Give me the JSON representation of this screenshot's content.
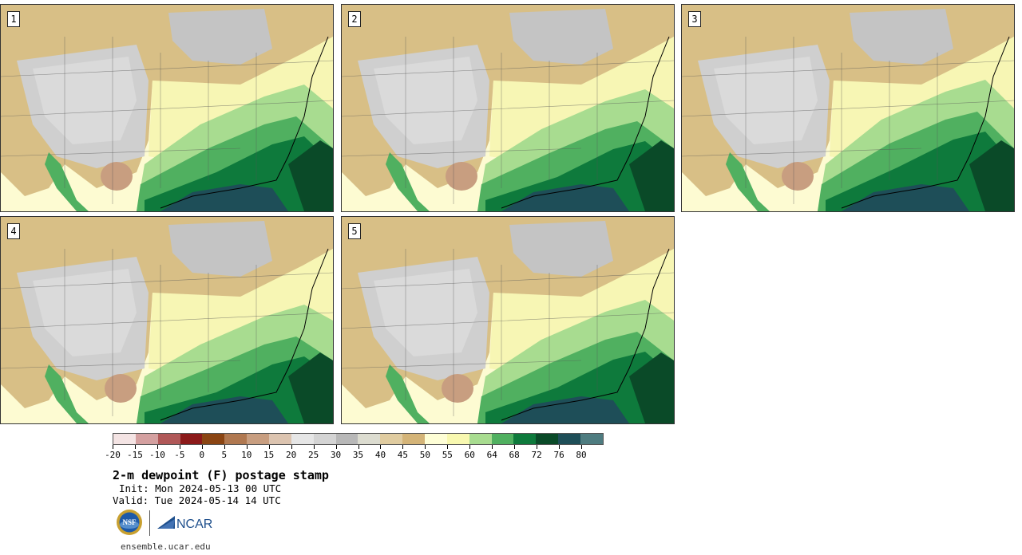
{
  "panels": [
    {
      "label": "1"
    },
    {
      "label": "2"
    },
    {
      "label": "3"
    },
    {
      "label": "4"
    },
    {
      "label": "5"
    }
  ],
  "colorbar": {
    "colors": [
      "#f4e4e4",
      "#d4a0a0",
      "#b05858",
      "#8c1a1a",
      "#8b4513",
      "#b07850",
      "#c89e80",
      "#dcc4b0",
      "#e6e6e6",
      "#d4d4d4",
      "#b8b8b8",
      "#dcdcd0",
      "#e0cca0",
      "#d4b478",
      "#fefed6",
      "#f8f8b0",
      "#a8dc90",
      "#50b060",
      "#0e7a3c",
      "#0a4a28",
      "#1e4e58",
      "#4e7c80"
    ],
    "tick_labels": [
      "-20",
      "-15",
      "-10",
      "-5",
      "0",
      "5",
      "10",
      "15",
      "20",
      "25",
      "30",
      "35",
      "40",
      "45",
      "50",
      "55",
      "60",
      "64",
      "68",
      "72",
      "76",
      "80"
    ]
  },
  "title": "2-m dewpoint (F) postage stamp",
  "init_text": "Init: Mon 2024-05-13 00 UTC",
  "valid_text": "Valid: Tue 2024-05-14 14 UTC",
  "logos": {
    "nsf_text": "NSF",
    "ncar_text": "NCAR"
  },
  "url": "ensemble.ucar.edu"
}
